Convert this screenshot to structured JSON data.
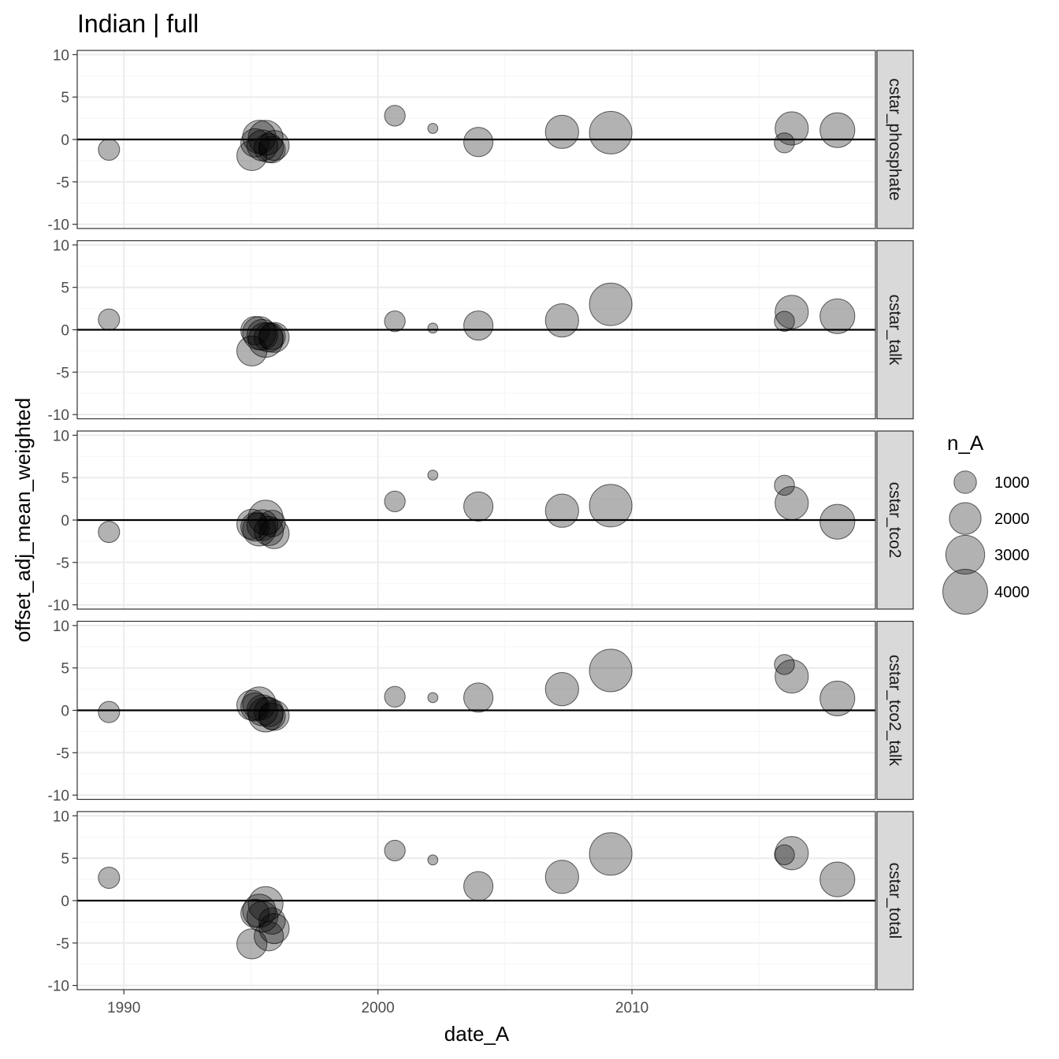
{
  "chart_data": {
    "type": "scatter",
    "title": "Indian | full",
    "xlabel": "date_A",
    "ylabel": "offset_adj_mean_weighted",
    "xlim": [
      "1988-03-01",
      "2019-08-01"
    ],
    "ylim": [
      -10.5,
      10.5
    ],
    "x_ticks": [
      1990,
      2000,
      2010
    ],
    "x_tick_labels": [
      "1990",
      "2000",
      "2010"
    ],
    "y_ticks": [
      10,
      5,
      0,
      -5,
      -10
    ],
    "y_tick_labels": [
      "10",
      "5",
      "0",
      "-5",
      "-10"
    ],
    "reference_line_y": 0,
    "grid": true,
    "colors": {
      "point_fill": "#000000",
      "point_fill_opacity": 0.3,
      "point_stroke": "#000000",
      "panel_border": "#333333",
      "grid_major": "#ebebeb",
      "grid_minor": "#f5f5f5",
      "strip_fill": "#d9d9d9"
    },
    "legend": {
      "title": "n_A",
      "position": "right",
      "entries": [
        {
          "label": "1000",
          "n": 1000
        },
        {
          "label": "2000",
          "n": 2000
        },
        {
          "label": "3000",
          "n": 3000
        },
        {
          "label": "4000",
          "n": 4000
        }
      ]
    },
    "panels": [
      {
        "name": "cstar_phosphate",
        "points": [
          {
            "date": "1989-06-01",
            "y": -1.2,
            "n": 900
          },
          {
            "date": "1995-01-15",
            "y": -1.9,
            "n": 1800
          },
          {
            "date": "1995-03-01",
            "y": -0.4,
            "n": 1600
          },
          {
            "date": "1995-05-01",
            "y": 0.3,
            "n": 2200
          },
          {
            "date": "1995-06-15",
            "y": -0.7,
            "n": 1900
          },
          {
            "date": "1995-08-01",
            "y": 0.2,
            "n": 2400
          },
          {
            "date": "1995-09-15",
            "y": -1.0,
            "n": 1700
          },
          {
            "date": "1995-11-01",
            "y": -1.2,
            "n": 1400
          },
          {
            "date": "1995-12-01",
            "y": -0.7,
            "n": 1800
          },
          {
            "date": "2000-09-01",
            "y": 2.8,
            "n": 850
          },
          {
            "date": "2002-03-01",
            "y": 1.3,
            "n": 200
          },
          {
            "date": "2003-12-15",
            "y": -0.3,
            "n": 1700
          },
          {
            "date": "2007-04-01",
            "y": 0.9,
            "n": 2200
          },
          {
            "date": "2009-03-01",
            "y": 0.8,
            "n": 3600
          },
          {
            "date": "2016-01-01",
            "y": -0.4,
            "n": 800
          },
          {
            "date": "2016-04-15",
            "y": 1.3,
            "n": 2200
          },
          {
            "date": "2018-02-01",
            "y": 1.1,
            "n": 2400
          }
        ]
      },
      {
        "name": "cstar_talk",
        "points": [
          {
            "date": "1989-06-01",
            "y": 1.2,
            "n": 900
          },
          {
            "date": "1995-01-15",
            "y": -2.5,
            "n": 1800
          },
          {
            "date": "1995-03-01",
            "y": -0.1,
            "n": 1600
          },
          {
            "date": "1995-05-01",
            "y": -0.4,
            "n": 2200
          },
          {
            "date": "1995-06-15",
            "y": -0.6,
            "n": 1900
          },
          {
            "date": "1995-08-01",
            "y": -1.2,
            "n": 2400
          },
          {
            "date": "1995-09-15",
            "y": -0.9,
            "n": 1700
          },
          {
            "date": "1995-11-01",
            "y": -0.8,
            "n": 1400
          },
          {
            "date": "1995-12-01",
            "y": -0.9,
            "n": 1800
          },
          {
            "date": "2000-09-01",
            "y": 1.0,
            "n": 850
          },
          {
            "date": "2002-03-01",
            "y": 0.2,
            "n": 200
          },
          {
            "date": "2003-12-15",
            "y": 0.5,
            "n": 1700
          },
          {
            "date": "2007-04-01",
            "y": 1.1,
            "n": 2200
          },
          {
            "date": "2009-03-01",
            "y": 3.0,
            "n": 3600
          },
          {
            "date": "2016-01-01",
            "y": 1.0,
            "n": 800
          },
          {
            "date": "2016-04-15",
            "y": 2.1,
            "n": 2200
          },
          {
            "date": "2018-02-01",
            "y": 1.6,
            "n": 2400
          }
        ]
      },
      {
        "name": "cstar_tco2",
        "points": [
          {
            "date": "1989-06-01",
            "y": -1.4,
            "n": 900
          },
          {
            "date": "1995-01-15",
            "y": -0.5,
            "n": 1800
          },
          {
            "date": "1995-03-01",
            "y": -0.8,
            "n": 1600
          },
          {
            "date": "1995-05-01",
            "y": -1.1,
            "n": 2200
          },
          {
            "date": "1995-06-15",
            "y": -0.6,
            "n": 1900
          },
          {
            "date": "1995-08-01",
            "y": 0.3,
            "n": 2400
          },
          {
            "date": "1995-09-15",
            "y": -1.3,
            "n": 1700
          },
          {
            "date": "1995-11-01",
            "y": -0.4,
            "n": 1400
          },
          {
            "date": "1995-12-01",
            "y": -1.6,
            "n": 1800
          },
          {
            "date": "2000-09-01",
            "y": 2.2,
            "n": 850
          },
          {
            "date": "2002-03-01",
            "y": 5.3,
            "n": 200
          },
          {
            "date": "2003-12-15",
            "y": 1.6,
            "n": 1700
          },
          {
            "date": "2007-04-01",
            "y": 1.1,
            "n": 2200
          },
          {
            "date": "2009-03-01",
            "y": 1.7,
            "n": 3600
          },
          {
            "date": "2016-01-01",
            "y": 4.1,
            "n": 800
          },
          {
            "date": "2016-04-15",
            "y": 2.0,
            "n": 2200
          },
          {
            "date": "2018-02-01",
            "y": -0.2,
            "n": 2400
          }
        ]
      },
      {
        "name": "cstar_tco2_talk",
        "points": [
          {
            "date": "1989-06-01",
            "y": -0.2,
            "n": 900
          },
          {
            "date": "1995-01-15",
            "y": 0.6,
            "n": 1800
          },
          {
            "date": "1995-03-01",
            "y": 0.4,
            "n": 1600
          },
          {
            "date": "1995-05-01",
            "y": 0.8,
            "n": 2200
          },
          {
            "date": "1995-06-15",
            "y": 0.0,
            "n": 1900
          },
          {
            "date": "1995-08-01",
            "y": -0.5,
            "n": 2400
          },
          {
            "date": "1995-09-15",
            "y": -0.2,
            "n": 1700
          },
          {
            "date": "1995-11-01",
            "y": -0.7,
            "n": 1400
          },
          {
            "date": "1995-12-01",
            "y": -0.6,
            "n": 1800
          },
          {
            "date": "2000-09-01",
            "y": 1.6,
            "n": 850
          },
          {
            "date": "2002-03-01",
            "y": 1.5,
            "n": 200
          },
          {
            "date": "2003-12-15",
            "y": 1.5,
            "n": 1700
          },
          {
            "date": "2007-04-01",
            "y": 2.5,
            "n": 2200
          },
          {
            "date": "2009-03-01",
            "y": 4.7,
            "n": 3600
          },
          {
            "date": "2016-01-01",
            "y": 5.4,
            "n": 800
          },
          {
            "date": "2016-04-15",
            "y": 4.0,
            "n": 2200
          },
          {
            "date": "2018-02-01",
            "y": 1.4,
            "n": 2400
          }
        ]
      },
      {
        "name": "cstar_total",
        "points": [
          {
            "date": "1989-06-01",
            "y": 2.7,
            "n": 900
          },
          {
            "date": "1995-01-15",
            "y": -5.1,
            "n": 1800
          },
          {
            "date": "1995-03-01",
            "y": -1.5,
            "n": 1600
          },
          {
            "date": "1995-05-01",
            "y": -1.2,
            "n": 2200
          },
          {
            "date": "1995-06-15",
            "y": -1.9,
            "n": 1900
          },
          {
            "date": "1995-08-01",
            "y": -0.4,
            "n": 2400
          },
          {
            "date": "1995-09-15",
            "y": -4.2,
            "n": 1700
          },
          {
            "date": "1995-11-01",
            "y": -2.4,
            "n": 1400
          },
          {
            "date": "1995-12-01",
            "y": -3.3,
            "n": 1800
          },
          {
            "date": "2000-09-01",
            "y": 5.9,
            "n": 850
          },
          {
            "date": "2002-03-01",
            "y": 4.8,
            "n": 200
          },
          {
            "date": "2003-12-15",
            "y": 1.7,
            "n": 1700
          },
          {
            "date": "2007-04-01",
            "y": 2.8,
            "n": 2200
          },
          {
            "date": "2009-03-01",
            "y": 5.5,
            "n": 3600
          },
          {
            "date": "2016-01-01",
            "y": 5.4,
            "n": 800
          },
          {
            "date": "2016-04-15",
            "y": 5.6,
            "n": 2200
          },
          {
            "date": "2018-02-01",
            "y": 2.5,
            "n": 2400
          }
        ]
      }
    ]
  }
}
